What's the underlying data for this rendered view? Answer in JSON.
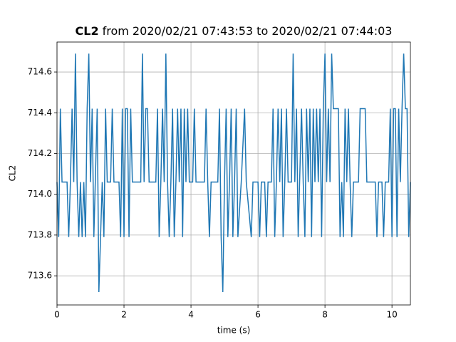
{
  "chart_data": {
    "type": "line",
    "title_name": "CL2",
    "title": "from 2020/02/21 07:43:53 to 2020/02/21 07:44:03",
    "x_label": "time (s)",
    "y_label": "CL2",
    "color": "#1f77b4",
    "grid": true,
    "xlim": [
      0,
      10.55
    ],
    "ylim": [
      713.457,
      714.747
    ],
    "xticks": [
      0,
      2,
      4,
      6,
      8,
      10
    ],
    "yticks": [
      713.6,
      713.8,
      {
        "value": 714,
        "label": "714.0"
      },
      714.2,
      714.4,
      714.6
    ],
    "x": [
      0,
      0.05,
      0.1,
      0.15,
      0.3,
      0.35,
      0.4,
      0.45,
      0.5,
      0.55,
      0.6,
      0.65,
      0.7,
      0.75,
      0.8,
      0.85,
      0.9,
      0.95,
      1.0,
      1.05,
      1.1,
      1.2,
      1.25,
      1.3,
      1.35,
      1.4,
      1.45,
      1.5,
      1.6,
      1.65,
      1.7,
      1.85,
      1.9,
      1.95,
      2.0,
      2.05,
      2.1,
      2.15,
      2.2,
      2.25,
      2.5,
      2.55,
      2.6,
      2.65,
      2.7,
      2.75,
      2.95,
      3.0,
      3.05,
      3.1,
      3.15,
      3.2,
      3.25,
      3.3,
      3.35,
      3.4,
      3.45,
      3.5,
      3.55,
      3.6,
      3.65,
      3.7,
      3.75,
      3.8,
      3.85,
      3.9,
      3.95,
      4.05,
      4.1,
      4.15,
      4.4,
      4.45,
      4.5,
      4.55,
      4.6,
      4.8,
      4.85,
      4.9,
      4.95,
      5.0,
      5.05,
      5.1,
      5.15,
      5.2,
      5.25,
      5.3,
      5.35,
      5.4,
      5.5,
      5.6,
      5.65,
      5.8,
      5.85,
      6.0,
      6.05,
      6.1,
      6.2,
      6.25,
      6.3,
      6.4,
      6.45,
      6.5,
      6.55,
      6.6,
      6.65,
      6.7,
      6.75,
      6.8,
      6.85,
      6.9,
      7.0,
      7.05,
      7.1,
      7.15,
      7.2,
      7.3,
      7.35,
      7.4,
      7.45,
      7.5,
      7.55,
      7.6,
      7.65,
      7.7,
      7.75,
      7.8,
      7.85,
      7.9,
      7.95,
      8.0,
      8.05,
      8.1,
      8.15,
      8.2,
      8.25,
      8.4,
      8.45,
      8.5,
      8.55,
      8.6,
      8.65,
      8.7,
      8.75,
      8.8,
      8.85,
      9.0,
      9.05,
      9.1,
      9.2,
      9.25,
      9.5,
      9.55,
      9.6,
      9.7,
      9.75,
      9.8,
      9.9,
      9.95,
      10.0,
      10.05,
      10.1,
      10.15,
      10.2,
      10.25,
      10.3,
      10.35,
      10.4,
      10.45,
      10.5,
      10.55
    ],
    "values": [
      714.06,
      713.79,
      714.42,
      714.06,
      714.06,
      713.79,
      714.06,
      714.42,
      714.06,
      714.69,
      714.06,
      713.79,
      714.06,
      713.79,
      714.06,
      713.79,
      714.42,
      714.69,
      714.06,
      714.42,
      713.79,
      714.42,
      713.52,
      713.79,
      714.06,
      713.79,
      714.42,
      714.06,
      714.06,
      714.42,
      714.06,
      714.06,
      713.79,
      714.42,
      713.79,
      714.42,
      714.42,
      713.79,
      714.42,
      714.06,
      714.06,
      714.69,
      714.06,
      714.42,
      714.42,
      714.06,
      714.06,
      714.42,
      713.79,
      714.06,
      714.42,
      714.06,
      714.69,
      714.06,
      713.79,
      714.06,
      714.42,
      713.79,
      714.06,
      714.42,
      714.06,
      714.42,
      713.79,
      714.42,
      714.06,
      714.42,
      714.06,
      714.06,
      714.42,
      714.06,
      714.06,
      714.42,
      714.06,
      713.79,
      714.06,
      714.06,
      714.42,
      713.79,
      713.52,
      714.06,
      714.42,
      713.79,
      714.06,
      714.42,
      713.79,
      714.06,
      714.42,
      713.79,
      714.06,
      714.42,
      714.06,
      713.79,
      714.06,
      714.06,
      713.79,
      714.06,
      714.06,
      713.79,
      714.06,
      714.06,
      714.42,
      713.79,
      714.06,
      714.42,
      714.06,
      714.42,
      713.79,
      714.06,
      714.42,
      714.06,
      714.06,
      714.69,
      714.06,
      714.42,
      713.79,
      714.42,
      714.06,
      713.79,
      714.42,
      714.06,
      714.42,
      713.79,
      714.42,
      714.06,
      714.42,
      714.06,
      714.42,
      713.79,
      714.42,
      714.69,
      714.06,
      714.42,
      714.06,
      714.69,
      714.42,
      714.42,
      713.79,
      714.06,
      713.79,
      714.42,
      714.06,
      714.42,
      714.06,
      713.79,
      714.06,
      714.06,
      714.42,
      714.42,
      714.42,
      714.06,
      714.06,
      713.79,
      714.06,
      714.06,
      713.79,
      714.06,
      714.06,
      714.42,
      713.79,
      714.42,
      714.42,
      713.79,
      714.42,
      714.06,
      714.42,
      714.69,
      714.42,
      714.42,
      713.79,
      714.06
    ]
  }
}
